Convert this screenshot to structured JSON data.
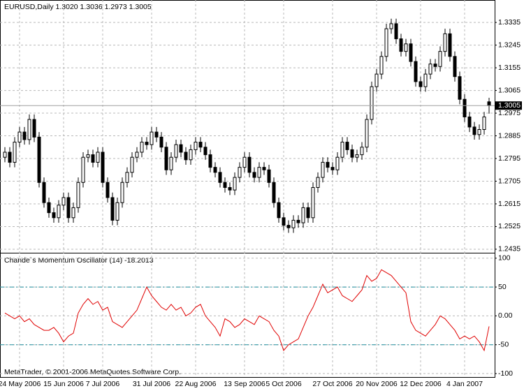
{
  "chart_data": [
    {
      "type": "candlestick",
      "title": "EURUSD,Daily  1.3020 1.3036 1.2973 1.3005",
      "categories": [
        null,
        null,
        null,
        "24 May 2006",
        null,
        null,
        null,
        null,
        null,
        null,
        null,
        null,
        "15 Jun 2006",
        null,
        null,
        null,
        null,
        null,
        null,
        null,
        "7 Jul 2006",
        null,
        null,
        null,
        null,
        null,
        null,
        null,
        null,
        null,
        "31 Jul 2006",
        null,
        null,
        null,
        null,
        null,
        null,
        null,
        null,
        "22 Aug 2006",
        null,
        null,
        null,
        null,
        null,
        null,
        null,
        null,
        null,
        "13 Sep 2006",
        null,
        null,
        null,
        null,
        null,
        null,
        null,
        "5 Oct 2006",
        null,
        null,
        null,
        null,
        null,
        null,
        null,
        null,
        null,
        "27 Oct 2006",
        null,
        null,
        null,
        null,
        null,
        null,
        null,
        null,
        "20 Nov 2006",
        null,
        null,
        null,
        null,
        null,
        null,
        null,
        null,
        "12 Dec 2006",
        null,
        null,
        null,
        null,
        null,
        null,
        null,
        null,
        "4 Jan 2007",
        null,
        null,
        null,
        null,
        null
      ],
      "open": [
        1.28,
        1.282,
        1.278,
        1.286,
        1.29,
        1.287,
        1.295,
        1.288,
        1.27,
        1.262,
        1.258,
        1.256,
        1.261,
        1.264,
        1.256,
        1.26,
        1.27,
        1.28,
        1.281,
        1.278,
        1.282,
        1.27,
        1.264,
        1.255,
        1.262,
        1.27,
        1.274,
        1.28,
        1.282,
        1.286,
        1.285,
        1.29,
        1.288,
        1.284,
        1.275,
        1.28,
        1.285,
        1.282,
        1.279,
        1.283,
        1.286,
        1.284,
        1.281,
        1.276,
        1.274,
        1.27,
        1.268,
        1.267,
        1.272,
        1.276,
        1.28,
        1.274,
        1.272,
        1.276,
        1.275,
        1.27,
        1.262,
        1.256,
        1.253,
        1.252,
        1.255,
        1.254,
        1.26,
        1.256,
        1.268,
        1.272,
        1.278,
        1.276,
        1.275,
        1.28,
        1.286,
        1.283,
        1.28,
        1.281,
        1.284,
        1.295,
        1.308,
        1.313,
        1.32,
        1.331,
        1.333,
        1.327,
        1.322,
        1.325,
        1.318,
        1.31,
        1.308,
        1.313,
        1.317,
        1.316,
        1.322,
        1.329,
        1.32,
        1.312,
        1.303,
        1.296,
        1.292,
        1.289,
        1.291,
        1.302
      ],
      "high": [
        1.284,
        1.284,
        1.288,
        1.292,
        1.292,
        1.297,
        1.297,
        1.29,
        1.272,
        1.264,
        1.26,
        1.263,
        1.266,
        1.266,
        1.262,
        1.272,
        1.282,
        1.283,
        1.283,
        1.284,
        1.284,
        1.272,
        1.266,
        1.264,
        1.272,
        1.276,
        1.282,
        1.284,
        1.288,
        1.288,
        1.292,
        1.292,
        1.29,
        1.286,
        1.282,
        1.287,
        1.287,
        1.284,
        1.285,
        1.288,
        1.288,
        1.286,
        1.283,
        1.278,
        1.276,
        1.272,
        1.27,
        1.274,
        1.278,
        1.282,
        1.282,
        1.276,
        1.278,
        1.278,
        1.277,
        1.272,
        1.264,
        1.258,
        1.255,
        1.257,
        1.257,
        1.262,
        1.262,
        1.27,
        1.274,
        1.28,
        1.28,
        1.278,
        1.282,
        1.288,
        1.288,
        1.285,
        1.283,
        1.286,
        1.297,
        1.31,
        1.315,
        1.322,
        1.333,
        1.335,
        1.335,
        1.329,
        1.327,
        1.327,
        1.32,
        1.312,
        1.315,
        1.319,
        1.319,
        1.324,
        1.331,
        1.331,
        1.322,
        1.314,
        1.305,
        1.298,
        1.294,
        1.293,
        1.298,
        1.3036
      ],
      "low": [
        1.278,
        1.276,
        1.276,
        1.284,
        1.285,
        1.285,
        1.286,
        1.268,
        1.26,
        1.256,
        1.254,
        1.254,
        1.259,
        1.254,
        1.254,
        1.258,
        1.268,
        1.278,
        1.276,
        1.276,
        1.268,
        1.262,
        1.253,
        1.253,
        1.26,
        1.268,
        1.272,
        1.278,
        1.28,
        1.283,
        1.283,
        1.286,
        1.282,
        1.273,
        1.273,
        1.278,
        1.28,
        1.277,
        1.277,
        1.281,
        1.282,
        1.279,
        1.274,
        1.272,
        1.268,
        1.266,
        1.265,
        1.265,
        1.27,
        1.274,
        1.272,
        1.27,
        1.27,
        1.273,
        1.268,
        1.26,
        1.254,
        1.251,
        1.25,
        1.25,
        1.252,
        1.252,
        1.254,
        1.254,
        1.266,
        1.27,
        1.274,
        1.273,
        1.273,
        1.278,
        1.281,
        1.278,
        1.278,
        1.279,
        1.282,
        1.293,
        1.306,
        1.311,
        1.318,
        1.329,
        1.325,
        1.32,
        1.32,
        1.316,
        1.308,
        1.306,
        1.306,
        1.311,
        1.314,
        1.314,
        1.32,
        1.318,
        1.31,
        1.301,
        1.294,
        1.29,
        1.287,
        1.287,
        1.289,
        1.2973
      ],
      "close": [
        1.282,
        1.278,
        1.286,
        1.29,
        1.287,
        1.295,
        1.288,
        1.27,
        1.262,
        1.258,
        1.256,
        1.261,
        1.264,
        1.256,
        1.26,
        1.27,
        1.28,
        1.281,
        1.278,
        1.282,
        1.27,
        1.264,
        1.255,
        1.262,
        1.27,
        1.274,
        1.28,
        1.282,
        1.286,
        1.285,
        1.29,
        1.288,
        1.284,
        1.275,
        1.28,
        1.285,
        1.282,
        1.279,
        1.283,
        1.286,
        1.284,
        1.281,
        1.276,
        1.274,
        1.27,
        1.268,
        1.267,
        1.272,
        1.276,
        1.28,
        1.274,
        1.272,
        1.276,
        1.275,
        1.27,
        1.262,
        1.256,
        1.253,
        1.252,
        1.255,
        1.254,
        1.26,
        1.256,
        1.268,
        1.272,
        1.278,
        1.276,
        1.275,
        1.28,
        1.286,
        1.283,
        1.28,
        1.281,
        1.284,
        1.295,
        1.308,
        1.313,
        1.32,
        1.331,
        1.333,
        1.327,
        1.322,
        1.325,
        1.318,
        1.31,
        1.308,
        1.313,
        1.317,
        1.316,
        1.322,
        1.329,
        1.32,
        1.312,
        1.303,
        1.296,
        1.292,
        1.289,
        1.291,
        1.296,
        1.3005
      ],
      "up_color": "#ffffff",
      "down_color": "#000000",
      "line_color": "#000000",
      "ylim": [
        1.2421,
        1.3424
      ],
      "yticks": [
        1.3335,
        1.3245,
        1.3155,
        1.3065,
        1.2975,
        1.2885,
        1.2795,
        1.2705,
        1.2615,
        1.2525,
        1.2435
      ],
      "last_price": {
        "value": 1.3005,
        "label": "1.3005"
      },
      "grid": true
    },
    {
      "type": "line",
      "title": "Chande`s Momentum Oscillator (14) -18.2013",
      "values": [
        5,
        0,
        -5,
        0,
        -10,
        -5,
        -15,
        -20,
        -25,
        -25,
        -20,
        -30,
        -45,
        -35,
        -30,
        5,
        20,
        30,
        20,
        25,
        10,
        15,
        -10,
        -15,
        -20,
        -10,
        0,
        10,
        30,
        50,
        35,
        25,
        15,
        10,
        20,
        10,
        15,
        0,
        5,
        15,
        20,
        0,
        -10,
        -20,
        -35,
        -5,
        -10,
        -20,
        -15,
        -5,
        -10,
        -15,
        0,
        -5,
        -10,
        -25,
        -35,
        -60,
        -50,
        -45,
        -40,
        -20,
        0,
        15,
        35,
        55,
        40,
        45,
        50,
        35,
        30,
        25,
        35,
        45,
        70,
        60,
        65,
        80,
        75,
        70,
        60,
        50,
        40,
        -10,
        -25,
        -30,
        -35,
        -25,
        -15,
        0,
        -5,
        -15,
        -25,
        -40,
        -35,
        -40,
        -35,
        -45,
        -60,
        -18.2013
      ],
      "color": "#e00000",
      "levels": [
        50,
        -50
      ],
      "level_color": "#2090a0",
      "ylim": [
        -106,
        107
      ],
      "yticks": [
        100,
        50,
        {
          "value": 0,
          "label": "0.00"
        },
        -50,
        -100
      ],
      "grid": true,
      "footer": "MetaTrader, © 2001-2006 MetaQuotes Software Corp."
    }
  ]
}
